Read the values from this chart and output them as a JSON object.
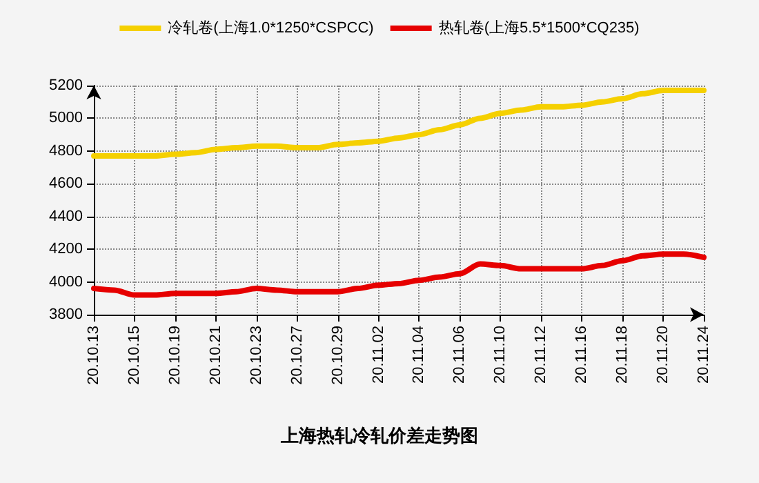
{
  "chart_data": {
    "type": "line",
    "title": "上海热轧冷轧价差走势图",
    "categories": [
      "20.10.13",
      null,
      "20.10.15",
      null,
      "20.10.19",
      null,
      "20.10.21",
      null,
      "20.10.23",
      null,
      "20.10.27",
      null,
      "20.10.29",
      null,
      "20.11.02",
      null,
      "20.11.04",
      null,
      "20.11.06",
      null,
      "20.11.10",
      null,
      "20.11.12",
      null,
      "20.11.16",
      null,
      "20.11.18",
      null,
      "20.11.20",
      null,
      "20.11.24"
    ],
    "series": [
      {
        "name": "冷轧卷(上海1.0*1250*CSPCC)",
        "color": "#f5d000",
        "values": [
          4770,
          4770,
          4770,
          4770,
          4780,
          4790,
          4810,
          4820,
          4830,
          4830,
          4820,
          4820,
          4840,
          4850,
          4860,
          4880,
          4900,
          4930,
          4960,
          5000,
          5030,
          5050,
          5070,
          5070,
          5080,
          5100,
          5120,
          5150,
          5170,
          5170,
          5170
        ]
      },
      {
        "name": "热轧卷(上海5.5*1500*CQ235)",
        "color": "#e60000",
        "values": [
          3960,
          3950,
          3920,
          3920,
          3930,
          3930,
          3930,
          3940,
          3960,
          3950,
          3940,
          3940,
          3940,
          3960,
          3980,
          3990,
          4010,
          4030,
          4050,
          4110,
          4100,
          4080,
          4080,
          4080,
          4080,
          4100,
          4130,
          4160,
          4170,
          4170,
          4150
        ]
      }
    ],
    "ylim": [
      3800,
      5200
    ],
    "yticks": [
      3800,
      4000,
      4200,
      4400,
      4600,
      4800,
      5000,
      5200
    ],
    "grid": true,
    "legend": "top",
    "marker": "none",
    "line_style": "solid"
  }
}
